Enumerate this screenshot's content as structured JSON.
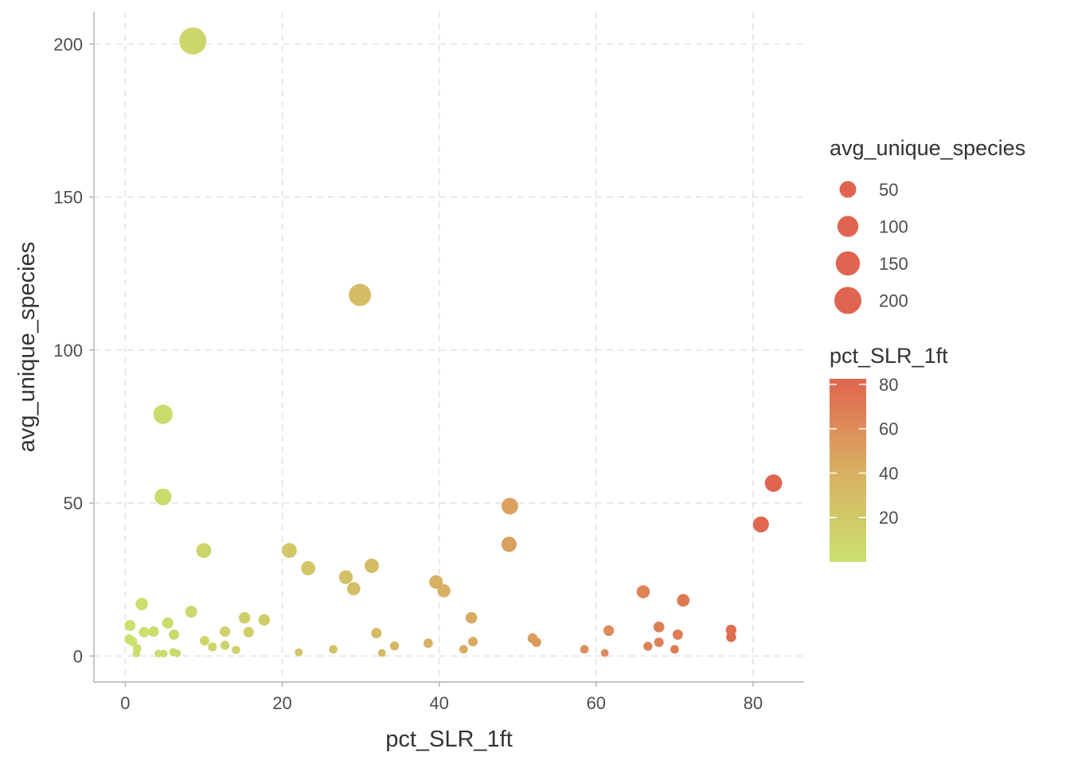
{
  "chart_data": {
    "type": "scatter",
    "xlabel": "pct_SLR_1ft",
    "ylabel": "avg_unique_species",
    "xlim": [
      -4,
      86.5
    ],
    "ylim": [
      -8.5,
      210.5
    ],
    "x_ticks": [
      0,
      20,
      40,
      60,
      80
    ],
    "y_ticks": [
      0,
      50,
      100,
      150,
      200
    ],
    "grid": "dashed major gridlines",
    "size_legend": {
      "title": "avg_unique_species",
      "breaks": [
        50,
        100,
        150,
        200
      ]
    },
    "color_legend": {
      "title": "pct_SLR_1ft",
      "breaks": [
        20,
        40,
        60,
        80
      ],
      "range": [
        0,
        82.5
      ],
      "low_color": "#C9E26E",
      "mid_color": "#D8AF62",
      "high_color": "#E06550"
    },
    "points": [
      {
        "x": 8.6,
        "y": 201
      },
      {
        "x": 29.9,
        "y": 118
      },
      {
        "x": 4.8,
        "y": 79
      },
      {
        "x": 4.8,
        "y": 52
      },
      {
        "x": 10.0,
        "y": 34.5
      },
      {
        "x": 20.9,
        "y": 34.5
      },
      {
        "x": 23.3,
        "y": 28.7
      },
      {
        "x": 28.1,
        "y": 25.8
      },
      {
        "x": 29.1,
        "y": 22.0
      },
      {
        "x": 31.4,
        "y": 29.5
      },
      {
        "x": 39.6,
        "y": 24.2
      },
      {
        "x": 40.6,
        "y": 21.3
      },
      {
        "x": 49.0,
        "y": 49.0
      },
      {
        "x": 48.9,
        "y": 36.5
      },
      {
        "x": 82.6,
        "y": 56.5
      },
      {
        "x": 81.0,
        "y": 43.0
      },
      {
        "x": 66.0,
        "y": 21.0
      },
      {
        "x": 71.1,
        "y": 18.2
      },
      {
        "x": 2.1,
        "y": 17.0
      },
      {
        "x": 8.4,
        "y": 14.5
      },
      {
        "x": 0.6,
        "y": 10.0
      },
      {
        "x": 5.4,
        "y": 10.8
      },
      {
        "x": 15.2,
        "y": 12.5
      },
      {
        "x": 17.7,
        "y": 11.8
      },
      {
        "x": 0.5,
        "y": 5.5
      },
      {
        "x": 0.9,
        "y": 4.8
      },
      {
        "x": 2.4,
        "y": 7.8
      },
      {
        "x": 3.6,
        "y": 8.0
      },
      {
        "x": 6.2,
        "y": 7.0
      },
      {
        "x": 12.7,
        "y": 8.0
      },
      {
        "x": 15.7,
        "y": 7.8
      },
      {
        "x": 10.1,
        "y": 5.0
      },
      {
        "x": 11.1,
        "y": 3.0
      },
      {
        "x": 12.7,
        "y": 3.5
      },
      {
        "x": 14.1,
        "y": 2.0
      },
      {
        "x": 1.5,
        "y": 2.5
      },
      {
        "x": 1.4,
        "y": 0.8
      },
      {
        "x": 4.2,
        "y": 0.8
      },
      {
        "x": 4.9,
        "y": 0.8
      },
      {
        "x": 6.1,
        "y": 1.3
      },
      {
        "x": 6.6,
        "y": 0.9
      },
      {
        "x": 22.1,
        "y": 1.2
      },
      {
        "x": 26.5,
        "y": 2.2
      },
      {
        "x": 32.0,
        "y": 7.5
      },
      {
        "x": 32.7,
        "y": 1.0
      },
      {
        "x": 34.3,
        "y": 3.3
      },
      {
        "x": 38.6,
        "y": 4.2
      },
      {
        "x": 43.1,
        "y": 2.2
      },
      {
        "x": 44.1,
        "y": 12.5
      },
      {
        "x": 44.3,
        "y": 4.7
      },
      {
        "x": 51.9,
        "y": 5.8
      },
      {
        "x": 52.4,
        "y": 4.5
      },
      {
        "x": 58.5,
        "y": 2.2
      },
      {
        "x": 61.1,
        "y": 1.0
      },
      {
        "x": 61.6,
        "y": 8.3
      },
      {
        "x": 66.6,
        "y": 3.2
      },
      {
        "x": 68.0,
        "y": 9.5
      },
      {
        "x": 68.0,
        "y": 4.5
      },
      {
        "x": 70.0,
        "y": 2.2
      },
      {
        "x": 70.4,
        "y": 7.0
      },
      {
        "x": 77.2,
        "y": 8.5
      },
      {
        "x": 77.2,
        "y": 6.2
      }
    ]
  }
}
